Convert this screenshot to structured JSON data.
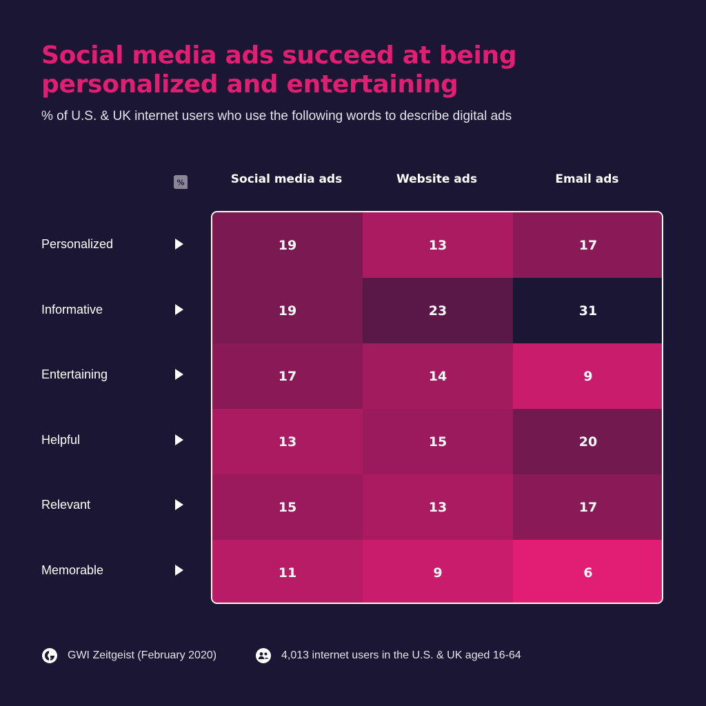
{
  "title": "Social media ads succeed at being personalized and entertaining",
  "subtitle": "% of U.S. & UK internet users who use the following words to describe digital ads",
  "percent_icon_label": "%",
  "chart_data": {
    "type": "heatmap",
    "columns": [
      "Social media ads",
      "Website ads",
      "Email ads"
    ],
    "rows": [
      "Personalized",
      "Informative",
      "Entertaining",
      "Helpful",
      "Relevant",
      "Memorable"
    ],
    "values": [
      [
        19,
        13,
        17
      ],
      [
        19,
        23,
        31
      ],
      [
        17,
        14,
        9
      ],
      [
        13,
        15,
        20
      ],
      [
        15,
        13,
        17
      ],
      [
        11,
        9,
        6
      ]
    ],
    "colors": {
      "low": "#e11d74",
      "high": "#1b1633"
    }
  },
  "footer": {
    "source": "GWI Zeitgeist (February 2020)",
    "sample": "4,013 internet users in the U.S. & UK aged 16-64"
  }
}
